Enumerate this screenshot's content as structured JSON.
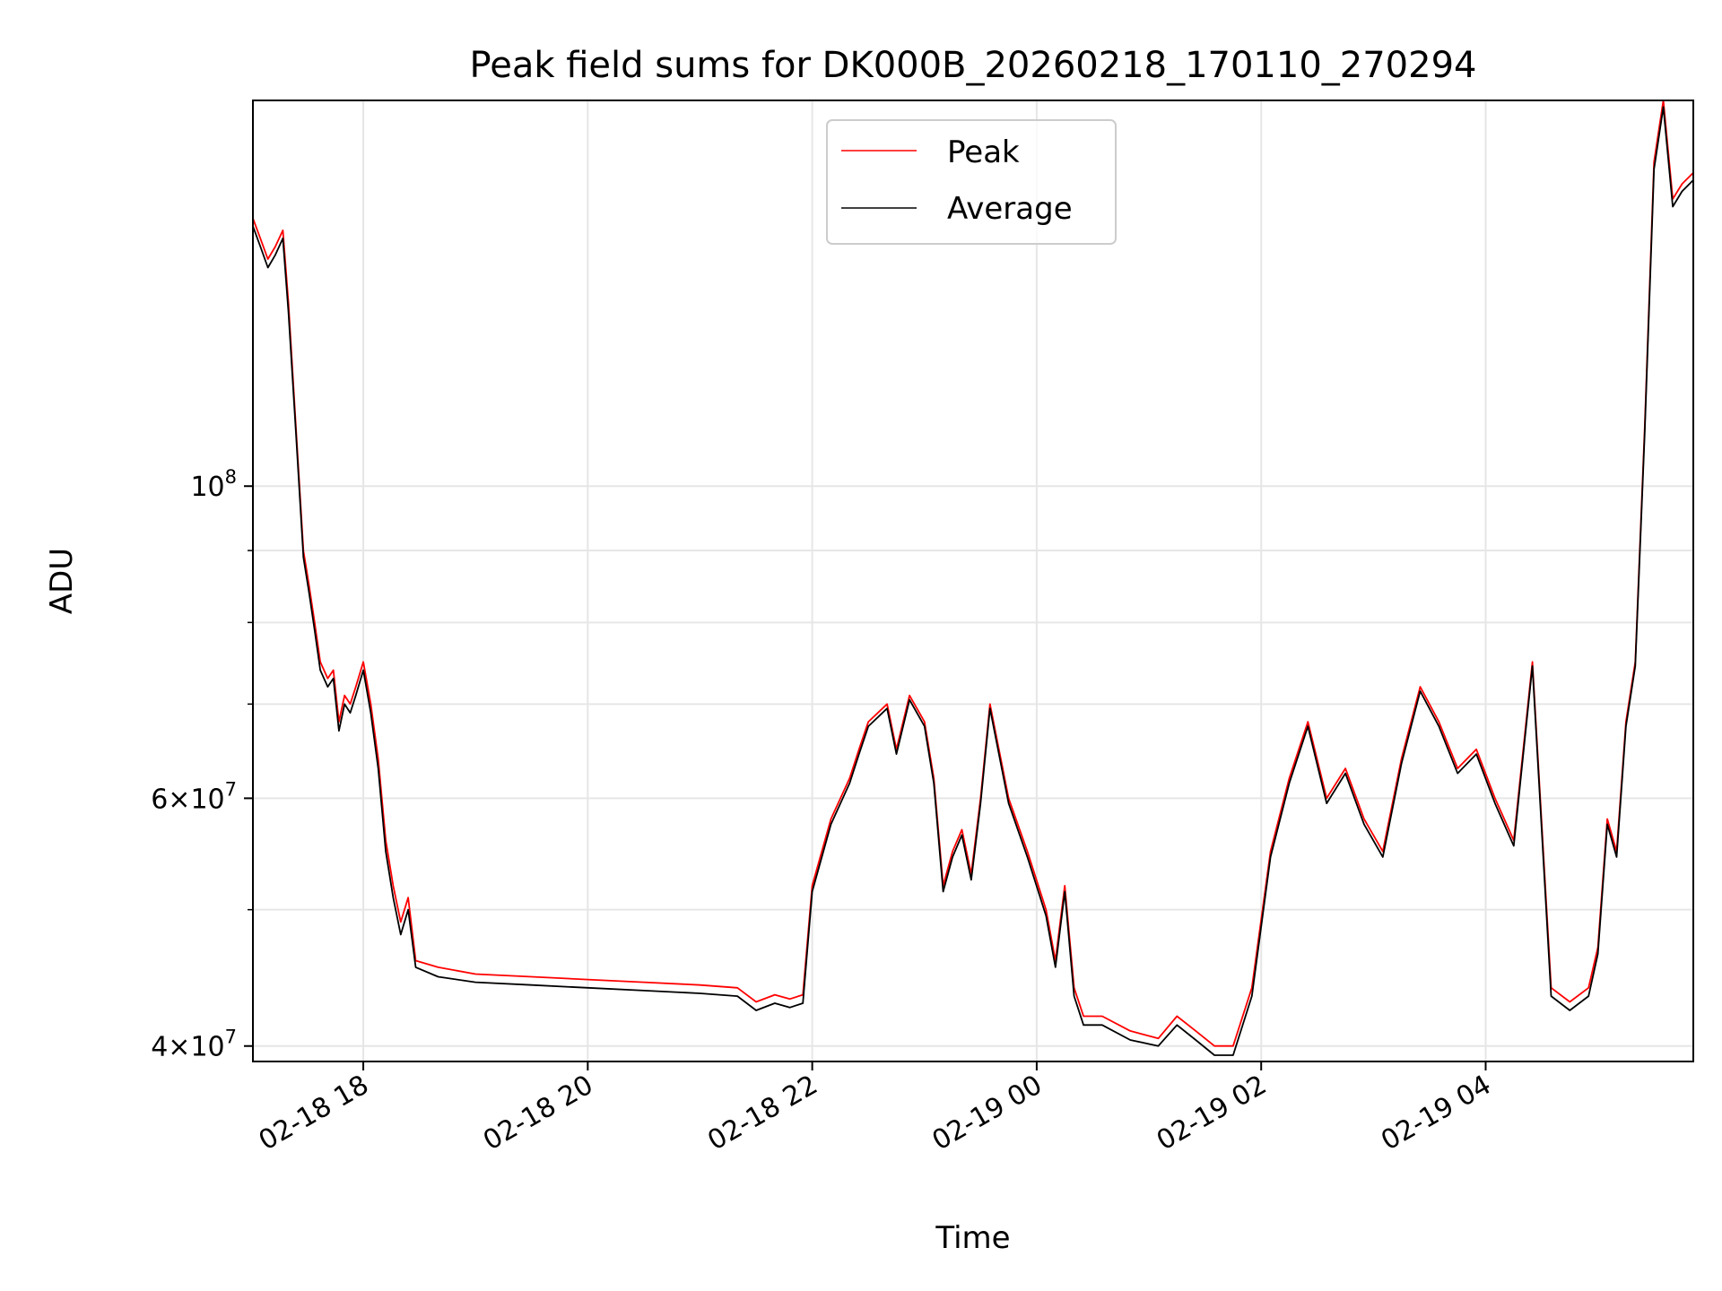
{
  "chart_data": {
    "type": "line",
    "title": "Peak field sums for DK000B_20260218_170110_270294",
    "xlabel": "Time",
    "ylabel": "ADU",
    "yscale": "log",
    "xlim": [
      "2026-02-18 17:01",
      "2026-02-19 05:51"
    ],
    "ylim": [
      39000000,
      188000000
    ],
    "grid": true,
    "legend": "upper center",
    "x_ticks": [
      {
        "value": "2026-02-18 18:00",
        "label": "02-18 18"
      },
      {
        "value": "2026-02-18 20:00",
        "label": "02-18 20"
      },
      {
        "value": "2026-02-18 22:00",
        "label": "02-18 22"
      },
      {
        "value": "2026-02-19 00:00",
        "label": "02-19 00"
      },
      {
        "value": "2026-02-19 02:00",
        "label": "02-19 02"
      },
      {
        "value": "2026-02-19 04:00",
        "label": "02-19 04"
      }
    ],
    "y_ticks": [
      {
        "value": 40000000,
        "base": "4",
        "exp": "7"
      },
      {
        "value": 60000000,
        "base": "6",
        "exp": "7"
      },
      {
        "value": 100000000,
        "base": "",
        "exp": "8"
      }
    ],
    "y_minor_ticks": [
      50000000,
      70000000,
      80000000,
      90000000
    ],
    "x": [
      "2026-02-18 17:01",
      "2026-02-18 17:05",
      "2026-02-18 17:09",
      "2026-02-18 17:13",
      "2026-02-18 17:17",
      "2026-02-18 17:20",
      "2026-02-18 17:24",
      "2026-02-18 17:28",
      "2026-02-18 17:31",
      "2026-02-18 17:34",
      "2026-02-18 17:37",
      "2026-02-18 17:41",
      "2026-02-18 17:44",
      "2026-02-18 17:47",
      "2026-02-18 17:50",
      "2026-02-18 17:53",
      "2026-02-18 17:56",
      "2026-02-18 18:00",
      "2026-02-18 18:04",
      "2026-02-18 18:08",
      "2026-02-18 18:12",
      "2026-02-18 18:16",
      "2026-02-18 18:20",
      "2026-02-18 18:24",
      "2026-02-18 18:28",
      "2026-02-18 18:40",
      "2026-02-18 19:00",
      "2026-02-18 19:30",
      "2026-02-18 20:00",
      "2026-02-18 20:30",
      "2026-02-18 21:00",
      "2026-02-18 21:20",
      "2026-02-18 21:30",
      "2026-02-18 21:40",
      "2026-02-18 21:48",
      "2026-02-18 21:55",
      "2026-02-18 22:00",
      "2026-02-18 22:10",
      "2026-02-18 22:20",
      "2026-02-18 22:25",
      "2026-02-18 22:30",
      "2026-02-18 22:40",
      "2026-02-18 22:45",
      "2026-02-18 22:52",
      "2026-02-18 23:00",
      "2026-02-18 23:05",
      "2026-02-18 23:10",
      "2026-02-18 23:15",
      "2026-02-18 23:20",
      "2026-02-18 23:25",
      "2026-02-18 23:30",
      "2026-02-18 23:35",
      "2026-02-18 23:45",
      "2026-02-18 23:55",
      "2026-02-19 00:05",
      "2026-02-19 00:10",
      "2026-02-19 00:15",
      "2026-02-19 00:20",
      "2026-02-19 00:25",
      "2026-02-19 00:35",
      "2026-02-19 00:50",
      "2026-02-19 01:05",
      "2026-02-19 01:15",
      "2026-02-19 01:25",
      "2026-02-19 01:35",
      "2026-02-19 01:45",
      "2026-02-19 01:55",
      "2026-02-19 02:05",
      "2026-02-19 02:15",
      "2026-02-19 02:25",
      "2026-02-19 02:35",
      "2026-02-19 02:45",
      "2026-02-19 02:55",
      "2026-02-19 03:05",
      "2026-02-19 03:15",
      "2026-02-19 03:25",
      "2026-02-19 03:35",
      "2026-02-19 03:45",
      "2026-02-19 03:55",
      "2026-02-19 04:05",
      "2026-02-19 04:15",
      "2026-02-19 04:25",
      "2026-02-19 04:35",
      "2026-02-19 04:45",
      "2026-02-19 04:55",
      "2026-02-19 05:00",
      "2026-02-19 05:05",
      "2026-02-19 05:10",
      "2026-02-19 05:15",
      "2026-02-19 05:20",
      "2026-02-19 05:25",
      "2026-02-19 05:30",
      "2026-02-19 05:35",
      "2026-02-19 05:40",
      "2026-02-19 05:45",
      "2026-02-19 05:51"
    ],
    "series": [
      {
        "name": "Peak",
        "color": "#ff0000",
        "values": [
          155000000,
          150000000,
          145000000,
          148000000,
          152000000,
          135000000,
          110000000,
          90000000,
          85000000,
          80000000,
          75000000,
          73000000,
          74000000,
          68000000,
          71000000,
          70000000,
          72000000,
          75000000,
          70000000,
          64000000,
          56000000,
          52000000,
          49000000,
          51000000,
          46000000,
          45500000,
          45000000,
          44800000,
          44600000,
          44400000,
          44200000,
          44000000,
          43000000,
          43500000,
          43200000,
          43500000,
          52000000,
          58000000,
          62000000,
          65000000,
          68000000,
          70000000,
          65000000,
          71000000,
          68000000,
          62000000,
          52000000,
          55000000,
          57000000,
          53000000,
          60000000,
          70000000,
          60000000,
          55000000,
          50000000,
          46000000,
          52000000,
          44000000,
          42000000,
          42000000,
          41000000,
          40500000,
          42000000,
          41000000,
          40000000,
          40000000,
          44000000,
          55000000,
          62000000,
          68000000,
          60000000,
          63000000,
          58000000,
          55000000,
          64000000,
          72000000,
          68000000,
          63000000,
          65000000,
          60000000,
          56000000,
          75000000,
          44000000,
          43000000,
          44000000,
          47000000,
          58000000,
          55000000,
          68000000,
          75000000,
          110000000,
          170000000,
          188000000,
          160000000,
          164000000,
          167000000
        ]
      },
      {
        "name": "Average",
        "color": "#000000",
        "values": [
          153000000,
          148000000,
          143000000,
          146000000,
          150000000,
          133000000,
          109000000,
          89000000,
          84000000,
          79000000,
          74000000,
          72000000,
          73000000,
          67000000,
          70000000,
          69000000,
          71000000,
          74000000,
          69000000,
          63000000,
          55000000,
          51000000,
          48000000,
          50000000,
          45500000,
          44800000,
          44400000,
          44200000,
          44000000,
          43800000,
          43600000,
          43400000,
          42400000,
          42900000,
          42600000,
          42900000,
          51500000,
          57500000,
          61500000,
          64500000,
          67500000,
          69500000,
          64500000,
          70500000,
          67500000,
          61500000,
          51500000,
          54500000,
          56500000,
          52500000,
          59500000,
          69500000,
          59500000,
          54500000,
          49500000,
          45500000,
          51500000,
          43400000,
          41400000,
          41400000,
          40400000,
          40000000,
          41400000,
          40400000,
          39400000,
          39400000,
          43400000,
          54500000,
          61500000,
          67500000,
          59500000,
          62500000,
          57500000,
          54500000,
          63500000,
          71500000,
          67500000,
          62500000,
          64500000,
          59500000,
          55500000,
          74500000,
          43400000,
          42400000,
          43400000,
          46500000,
          57500000,
          54500000,
          67500000,
          74500000,
          109000000,
          168000000,
          186000000,
          158000000,
          162000000,
          165000000
        ]
      }
    ]
  }
}
